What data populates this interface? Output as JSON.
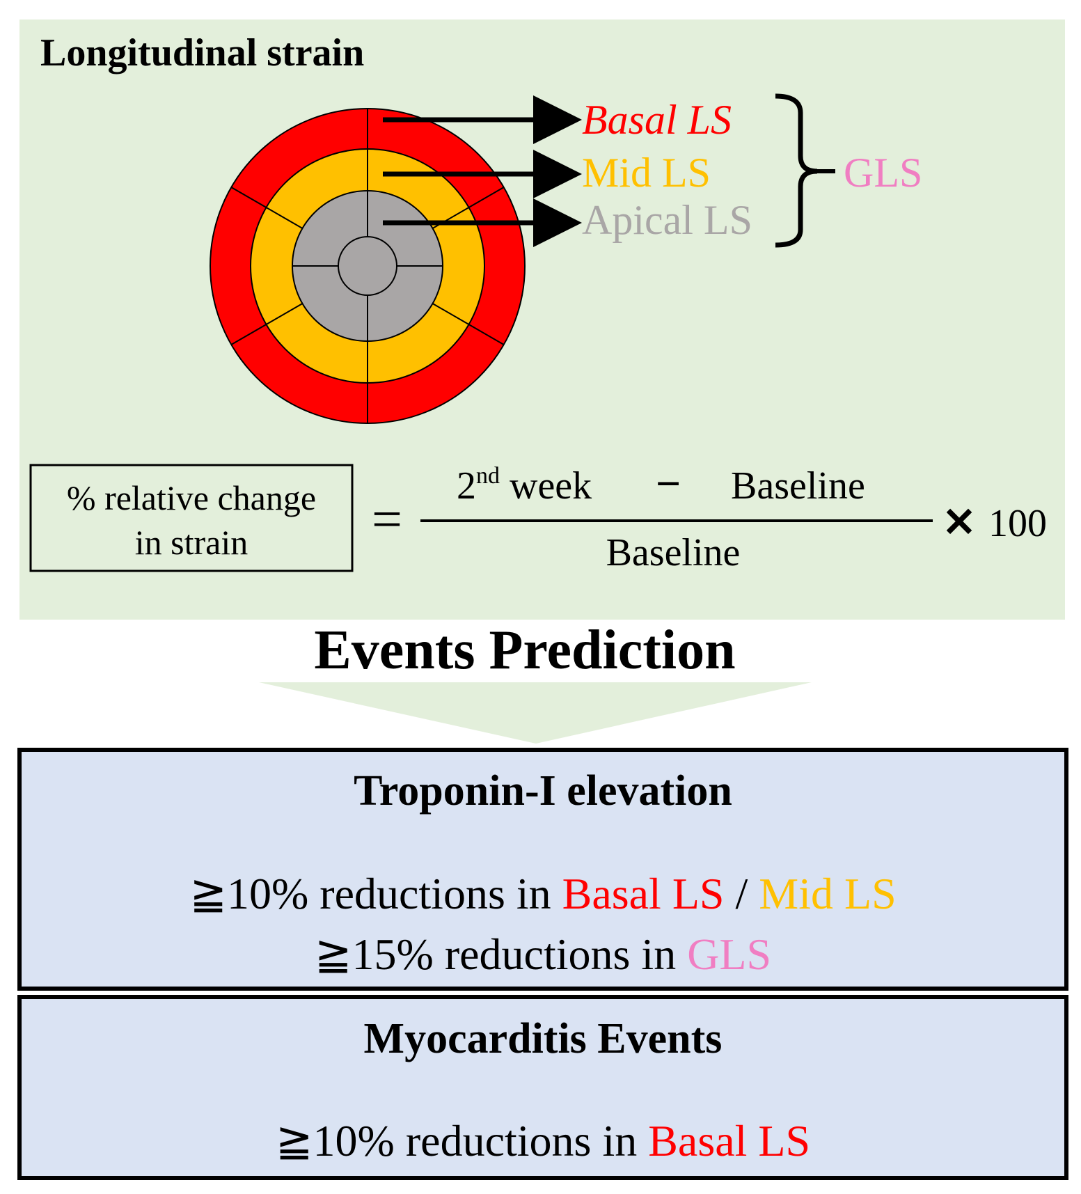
{
  "top_panel": {
    "title": "Longitudinal strain",
    "bullseye": {
      "rings": [
        {
          "name": "basal",
          "color": "#ff0000"
        },
        {
          "name": "mid",
          "color": "#ffc000"
        },
        {
          "name": "apical",
          "color": "#a9a6a6"
        }
      ]
    },
    "labels": {
      "basal": "Basal LS",
      "mid": "Mid LS",
      "apical": "Apical LS",
      "gls": "GLS"
    },
    "formula": {
      "lhs_line1": "% relative change",
      "lhs_line2": "in strain",
      "equals": "=",
      "numerator_base": "2",
      "numerator_sup": "nd",
      "numerator_word": " week",
      "minus": "−",
      "numerator_right": "Baseline",
      "denominator": "Baseline",
      "times": "✕",
      "multiplier": "100"
    }
  },
  "events_title": "Events Prediction",
  "boxes": [
    {
      "title": "Troponin-I elevation",
      "line1": {
        "prefix": "≧10% reductions in ",
        "term1": "Basal LS",
        "sep": " / ",
        "term2": "Mid LS"
      },
      "line2": {
        "prefix": "≧15% reductions in ",
        "term": "GLS"
      }
    },
    {
      "title": "Myocarditis Events",
      "line1": {
        "prefix": "≧10% reductions in ",
        "term": "Basal LS"
      }
    }
  ],
  "colors": {
    "panel_bg": "#e3efdb",
    "box_bg": "#dae3f3",
    "basal": "#ff0000",
    "mid": "#ffc000",
    "apical": "#a9a6a6",
    "gls": "#f07ec2",
    "arrow_fill": "#e3efdb"
  }
}
